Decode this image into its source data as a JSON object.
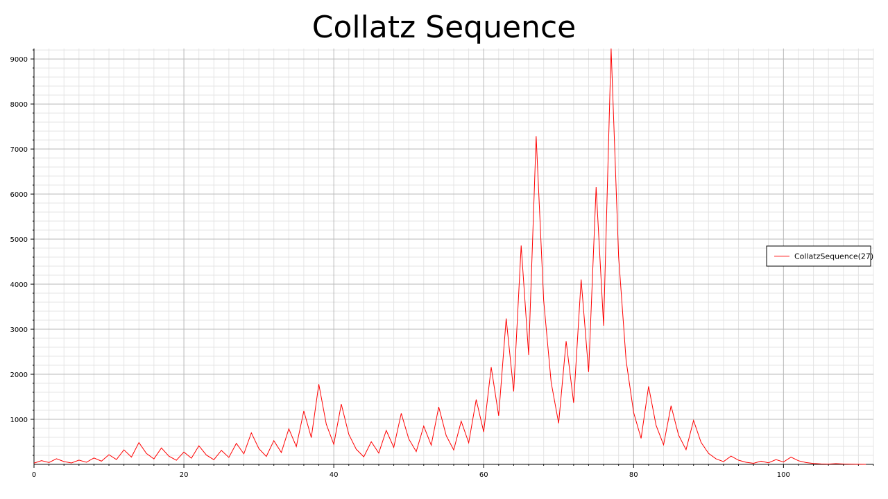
{
  "chart_data": {
    "type": "line",
    "title": "Collatz Sequence",
    "xlabel": "",
    "ylabel": "",
    "xlim": [
      0,
      112
    ],
    "ylim": [
      0,
      9232
    ],
    "x_ticks": [
      0,
      20,
      40,
      60,
      80,
      100
    ],
    "y_ticks": [
      1000,
      2000,
      3000,
      4000,
      5000,
      6000,
      7000,
      8000,
      9000
    ],
    "grid": true,
    "legend_position": "right",
    "series": [
      {
        "name": "CollatzSequence(27)",
        "color": "#ff0000",
        "x": [
          0,
          1,
          2,
          3,
          4,
          5,
          6,
          7,
          8,
          9,
          10,
          11,
          12,
          13,
          14,
          15,
          16,
          17,
          18,
          19,
          20,
          21,
          22,
          23,
          24,
          25,
          26,
          27,
          28,
          29,
          30,
          31,
          32,
          33,
          34,
          35,
          36,
          37,
          38,
          39,
          40,
          41,
          42,
          43,
          44,
          45,
          46,
          47,
          48,
          49,
          50,
          51,
          52,
          53,
          54,
          55,
          56,
          57,
          58,
          59,
          60,
          61,
          62,
          63,
          64,
          65,
          66,
          67,
          68,
          69,
          70,
          71,
          72,
          73,
          74,
          75,
          76,
          77,
          78,
          79,
          80,
          81,
          82,
          83,
          84,
          85,
          86,
          87,
          88,
          89,
          90,
          91,
          92,
          93,
          94,
          95,
          96,
          97,
          98,
          99,
          100,
          101,
          102,
          103,
          104,
          105,
          106,
          107,
          108,
          109,
          110,
          111
        ],
        "values": [
          27,
          82,
          41,
          124,
          62,
          31,
          94,
          47,
          142,
          71,
          214,
          107,
          322,
          161,
          484,
          242,
          121,
          364,
          182,
          91,
          274,
          137,
          412,
          206,
          103,
          310,
          155,
          466,
          233,
          700,
          350,
          175,
          526,
          263,
          790,
          395,
          1186,
          593,
          1780,
          890,
          445,
          1336,
          668,
          334,
          167,
          502,
          251,
          754,
          377,
          1132,
          566,
          283,
          850,
          425,
          1276,
          638,
          319,
          958,
          479,
          1438,
          719,
          2158,
          1079,
          3238,
          1619,
          4858,
          2429,
          7288,
          3644,
          1822,
          911,
          2734,
          1367,
          4102,
          2051,
          6154,
          3077,
          9232,
          4616,
          2308,
          1154,
          577,
          1732,
          866,
          433,
          1300,
          650,
          325,
          976,
          488,
          244,
          122,
          61,
          184,
          92,
          46,
          23,
          70,
          35,
          106,
          53,
          160,
          80,
          40,
          20,
          10,
          5,
          16,
          8,
          4,
          2,
          1
        ]
      }
    ]
  }
}
